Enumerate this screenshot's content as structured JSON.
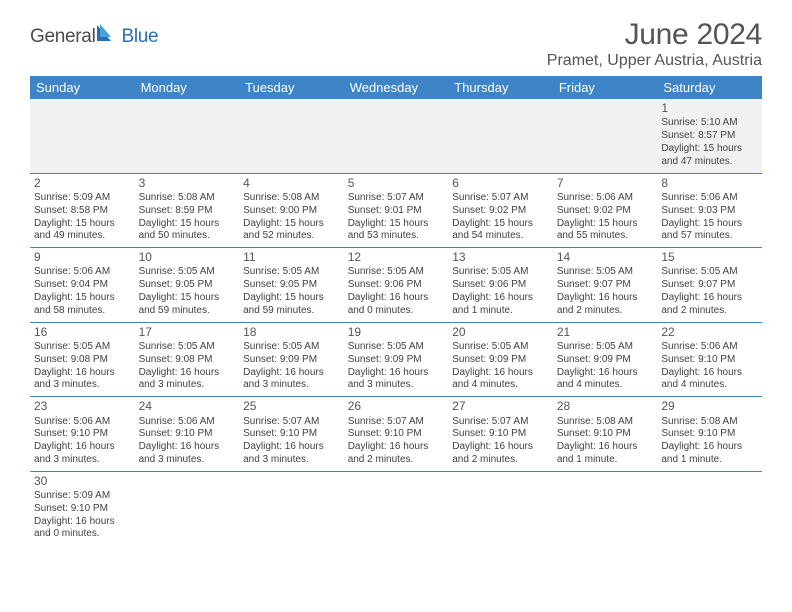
{
  "logo": {
    "general": "General",
    "blue": "Blue"
  },
  "title": "June 2024",
  "location": "Pramet, Upper Austria, Austria",
  "colors": {
    "header_bg": "#3d85c6",
    "header_text": "#ffffff",
    "body_text": "#424242",
    "divider": "#3d85c6",
    "first_row_bg": "#f1f1f1",
    "logo_gray": "#4a4a4a",
    "logo_blue": "#2a6fb5"
  },
  "days_of_week": [
    "Sunday",
    "Monday",
    "Tuesday",
    "Wednesday",
    "Thursday",
    "Friday",
    "Saturday"
  ],
  "weeks": [
    [
      null,
      null,
      null,
      null,
      null,
      null,
      {
        "n": "1",
        "sr": "Sunrise: 5:10 AM",
        "ss": "Sunset: 8:57 PM",
        "d1": "Daylight: 15 hours",
        "d2": "and 47 minutes."
      }
    ],
    [
      {
        "n": "2",
        "sr": "Sunrise: 5:09 AM",
        "ss": "Sunset: 8:58 PM",
        "d1": "Daylight: 15 hours",
        "d2": "and 49 minutes."
      },
      {
        "n": "3",
        "sr": "Sunrise: 5:08 AM",
        "ss": "Sunset: 8:59 PM",
        "d1": "Daylight: 15 hours",
        "d2": "and 50 minutes."
      },
      {
        "n": "4",
        "sr": "Sunrise: 5:08 AM",
        "ss": "Sunset: 9:00 PM",
        "d1": "Daylight: 15 hours",
        "d2": "and 52 minutes."
      },
      {
        "n": "5",
        "sr": "Sunrise: 5:07 AM",
        "ss": "Sunset: 9:01 PM",
        "d1": "Daylight: 15 hours",
        "d2": "and 53 minutes."
      },
      {
        "n": "6",
        "sr": "Sunrise: 5:07 AM",
        "ss": "Sunset: 9:02 PM",
        "d1": "Daylight: 15 hours",
        "d2": "and 54 minutes."
      },
      {
        "n": "7",
        "sr": "Sunrise: 5:06 AM",
        "ss": "Sunset: 9:02 PM",
        "d1": "Daylight: 15 hours",
        "d2": "and 55 minutes."
      },
      {
        "n": "8",
        "sr": "Sunrise: 5:06 AM",
        "ss": "Sunset: 9:03 PM",
        "d1": "Daylight: 15 hours",
        "d2": "and 57 minutes."
      }
    ],
    [
      {
        "n": "9",
        "sr": "Sunrise: 5:06 AM",
        "ss": "Sunset: 9:04 PM",
        "d1": "Daylight: 15 hours",
        "d2": "and 58 minutes."
      },
      {
        "n": "10",
        "sr": "Sunrise: 5:05 AM",
        "ss": "Sunset: 9:05 PM",
        "d1": "Daylight: 15 hours",
        "d2": "and 59 minutes."
      },
      {
        "n": "11",
        "sr": "Sunrise: 5:05 AM",
        "ss": "Sunset: 9:05 PM",
        "d1": "Daylight: 15 hours",
        "d2": "and 59 minutes."
      },
      {
        "n": "12",
        "sr": "Sunrise: 5:05 AM",
        "ss": "Sunset: 9:06 PM",
        "d1": "Daylight: 16 hours",
        "d2": "and 0 minutes."
      },
      {
        "n": "13",
        "sr": "Sunrise: 5:05 AM",
        "ss": "Sunset: 9:06 PM",
        "d1": "Daylight: 16 hours",
        "d2": "and 1 minute."
      },
      {
        "n": "14",
        "sr": "Sunrise: 5:05 AM",
        "ss": "Sunset: 9:07 PM",
        "d1": "Daylight: 16 hours",
        "d2": "and 2 minutes."
      },
      {
        "n": "15",
        "sr": "Sunrise: 5:05 AM",
        "ss": "Sunset: 9:07 PM",
        "d1": "Daylight: 16 hours",
        "d2": "and 2 minutes."
      }
    ],
    [
      {
        "n": "16",
        "sr": "Sunrise: 5:05 AM",
        "ss": "Sunset: 9:08 PM",
        "d1": "Daylight: 16 hours",
        "d2": "and 3 minutes."
      },
      {
        "n": "17",
        "sr": "Sunrise: 5:05 AM",
        "ss": "Sunset: 9:08 PM",
        "d1": "Daylight: 16 hours",
        "d2": "and 3 minutes."
      },
      {
        "n": "18",
        "sr": "Sunrise: 5:05 AM",
        "ss": "Sunset: 9:09 PM",
        "d1": "Daylight: 16 hours",
        "d2": "and 3 minutes."
      },
      {
        "n": "19",
        "sr": "Sunrise: 5:05 AM",
        "ss": "Sunset: 9:09 PM",
        "d1": "Daylight: 16 hours",
        "d2": "and 3 minutes."
      },
      {
        "n": "20",
        "sr": "Sunrise: 5:05 AM",
        "ss": "Sunset: 9:09 PM",
        "d1": "Daylight: 16 hours",
        "d2": "and 4 minutes."
      },
      {
        "n": "21",
        "sr": "Sunrise: 5:05 AM",
        "ss": "Sunset: 9:09 PM",
        "d1": "Daylight: 16 hours",
        "d2": "and 4 minutes."
      },
      {
        "n": "22",
        "sr": "Sunrise: 5:06 AM",
        "ss": "Sunset: 9:10 PM",
        "d1": "Daylight: 16 hours",
        "d2": "and 4 minutes."
      }
    ],
    [
      {
        "n": "23",
        "sr": "Sunrise: 5:06 AM",
        "ss": "Sunset: 9:10 PM",
        "d1": "Daylight: 16 hours",
        "d2": "and 3 minutes."
      },
      {
        "n": "24",
        "sr": "Sunrise: 5:06 AM",
        "ss": "Sunset: 9:10 PM",
        "d1": "Daylight: 16 hours",
        "d2": "and 3 minutes."
      },
      {
        "n": "25",
        "sr": "Sunrise: 5:07 AM",
        "ss": "Sunset: 9:10 PM",
        "d1": "Daylight: 16 hours",
        "d2": "and 3 minutes."
      },
      {
        "n": "26",
        "sr": "Sunrise: 5:07 AM",
        "ss": "Sunset: 9:10 PM",
        "d1": "Daylight: 16 hours",
        "d2": "and 2 minutes."
      },
      {
        "n": "27",
        "sr": "Sunrise: 5:07 AM",
        "ss": "Sunset: 9:10 PM",
        "d1": "Daylight: 16 hours",
        "d2": "and 2 minutes."
      },
      {
        "n": "28",
        "sr": "Sunrise: 5:08 AM",
        "ss": "Sunset: 9:10 PM",
        "d1": "Daylight: 16 hours",
        "d2": "and 1 minute."
      },
      {
        "n": "29",
        "sr": "Sunrise: 5:08 AM",
        "ss": "Sunset: 9:10 PM",
        "d1": "Daylight: 16 hours",
        "d2": "and 1 minute."
      }
    ],
    [
      {
        "n": "30",
        "sr": "Sunrise: 5:09 AM",
        "ss": "Sunset: 9:10 PM",
        "d1": "Daylight: 16 hours",
        "d2": "and 0 minutes."
      },
      null,
      null,
      null,
      null,
      null,
      null
    ]
  ]
}
